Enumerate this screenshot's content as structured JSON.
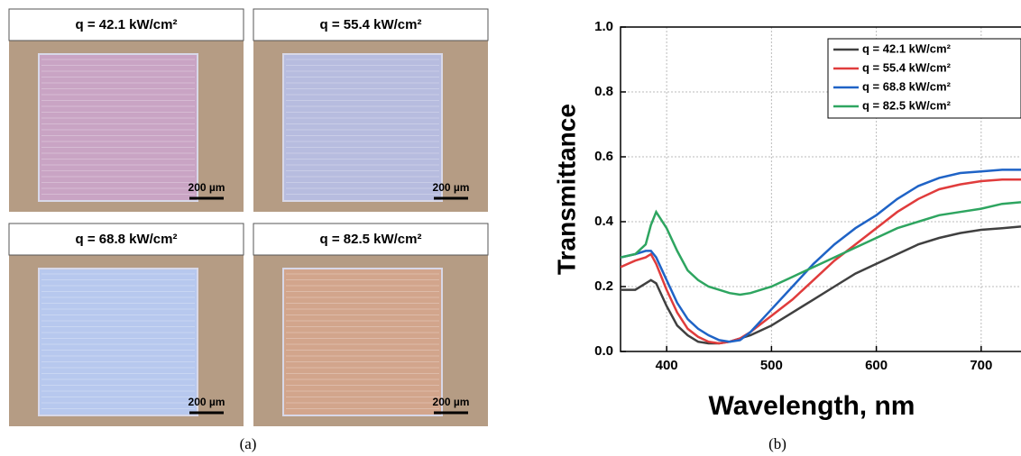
{
  "panel_a": {
    "images": [
      {
        "label": "q = 42.1 kW/cm²",
        "scale": "200 µm"
      },
      {
        "label": "q = 55.4 kW/cm²",
        "scale": "200 µm"
      },
      {
        "label": "q = 68.8 kW/cm²",
        "scale": "200 µm"
      },
      {
        "label": "q = 82.5 kW/cm²",
        "scale": "200 µm"
      }
    ],
    "caption": "(a)"
  },
  "caption_b": "(b)",
  "chart_data": {
    "type": "line",
    "xlabel": "Wavelength, nm",
    "ylabel": "Transmittance",
    "x": [
      356,
      370,
      380,
      385,
      390,
      400,
      410,
      420,
      430,
      440,
      450,
      460,
      470,
      480,
      490,
      500,
      520,
      540,
      560,
      580,
      600,
      620,
      640,
      660,
      680,
      700,
      720,
      738
    ],
    "series": [
      {
        "name": "q = 42.1 kW/cm²",
        "color": "#404040",
        "values": [
          0.19,
          0.19,
          0.21,
          0.22,
          0.21,
          0.14,
          0.08,
          0.05,
          0.03,
          0.025,
          0.025,
          0.03,
          0.04,
          0.05,
          0.065,
          0.08,
          0.12,
          0.16,
          0.2,
          0.24,
          0.27,
          0.3,
          0.33,
          0.35,
          0.365,
          0.375,
          0.38,
          0.385
        ]
      },
      {
        "name": "q = 55.4 kW/cm²",
        "color": "#e03c3c",
        "values": [
          0.26,
          0.28,
          0.29,
          0.3,
          0.27,
          0.19,
          0.12,
          0.07,
          0.045,
          0.03,
          0.025,
          0.03,
          0.04,
          0.06,
          0.085,
          0.11,
          0.16,
          0.22,
          0.28,
          0.33,
          0.38,
          0.43,
          0.47,
          0.5,
          0.515,
          0.525,
          0.53,
          0.53
        ]
      },
      {
        "name": "q = 68.8 kW/cm²",
        "color": "#1f63c6",
        "values": [
          0.29,
          0.3,
          0.31,
          0.31,
          0.29,
          0.22,
          0.15,
          0.1,
          0.07,
          0.05,
          0.035,
          0.03,
          0.035,
          0.06,
          0.095,
          0.13,
          0.2,
          0.27,
          0.33,
          0.38,
          0.42,
          0.47,
          0.51,
          0.535,
          0.55,
          0.555,
          0.56,
          0.56
        ]
      },
      {
        "name": "q = 82.5 kW/cm²",
        "color": "#2ea560",
        "values": [
          0.29,
          0.3,
          0.33,
          0.39,
          0.43,
          0.38,
          0.31,
          0.25,
          0.22,
          0.2,
          0.19,
          0.18,
          0.175,
          0.18,
          0.19,
          0.2,
          0.23,
          0.26,
          0.29,
          0.32,
          0.35,
          0.38,
          0.4,
          0.42,
          0.43,
          0.44,
          0.455,
          0.46
        ]
      }
    ],
    "xlim": [
      356,
      738
    ],
    "ylim": [
      0,
      1
    ],
    "xticks": [
      400,
      500,
      600,
      700
    ],
    "yticks": [
      {
        "value": 0,
        "label": "0.0"
      },
      0.2,
      0.4,
      0.6,
      0.8,
      {
        "value": 1,
        "label": "1.0"
      }
    ],
    "grid": true,
    "legend": "upper right"
  }
}
